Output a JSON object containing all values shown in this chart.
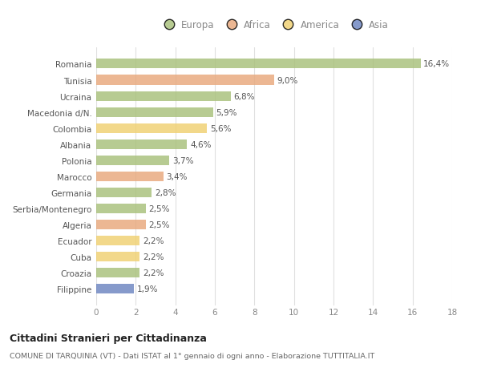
{
  "categories": [
    "Filippine",
    "Croazia",
    "Cuba",
    "Ecuador",
    "Algeria",
    "Serbia/Montenegro",
    "Germania",
    "Marocco",
    "Polonia",
    "Albania",
    "Colombia",
    "Macedonia d/N.",
    "Ucraina",
    "Tunisia",
    "Romania"
  ],
  "values": [
    1.9,
    2.2,
    2.2,
    2.2,
    2.5,
    2.5,
    2.8,
    3.4,
    3.7,
    4.6,
    5.6,
    5.9,
    6.8,
    9.0,
    16.4
  ],
  "bar_colors": [
    "#6b84c0",
    "#a8c07a",
    "#f0d070",
    "#f0d070",
    "#e8a87c",
    "#a8c07a",
    "#a8c07a",
    "#e8a87c",
    "#a8c07a",
    "#a8c07a",
    "#f0d070",
    "#a8c07a",
    "#a8c07a",
    "#e8a87c",
    "#a8c07a"
  ],
  "legend_labels": [
    "Europa",
    "Africa",
    "America",
    "Asia"
  ],
  "legend_colors": [
    "#a8c07a",
    "#e8a87c",
    "#f0d070",
    "#6b84c0"
  ],
  "xlim": [
    0,
    18
  ],
  "xticks": [
    0,
    2,
    4,
    6,
    8,
    10,
    12,
    14,
    16,
    18
  ],
  "title": "Cittadini Stranieri per Cittadinanza",
  "subtitle": "COMUNE DI TARQUINIA (VT) - Dati ISTAT al 1° gennaio di ogni anno - Elaborazione TUTTITALIA.IT",
  "background_color": "#ffffff",
  "grid_color": "#e0e0e0",
  "bar_alpha": 0.82
}
